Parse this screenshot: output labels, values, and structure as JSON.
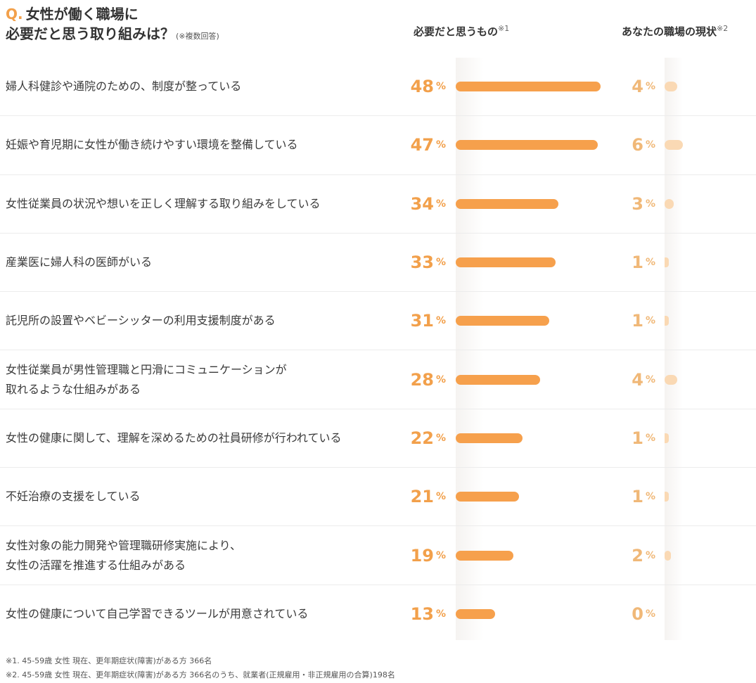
{
  "title": {
    "q_mark": "Q.",
    "line1": "女性が働く職場に",
    "line2": "必要だと思う取り組みは？",
    "note": "(※複数回答)"
  },
  "columns": {
    "needed": {
      "label": "必要だと思うもの",
      "note": "※1"
    },
    "current": {
      "label": "あなたの職場の現状",
      "note": "※2"
    }
  },
  "percent_symbol": "%",
  "colors": {
    "needed_bar": "#f6a04c",
    "current_bar": "#fad9b4",
    "needed_text": "#f2a04b",
    "current_text": "#f0b878"
  },
  "chart_data": {
    "type": "bar",
    "orientation": "horizontal",
    "categories": [
      [
        "婦人科健診や通院のための、制度が整っている"
      ],
      [
        "妊娠や育児期に女性が働き続けやすい環境を整備している"
      ],
      [
        "女性従業員の状況や想いを正しく理解する取り組みをしている"
      ],
      [
        "産業医に婦人科の医師がいる"
      ],
      [
        "託児所の設置やベビーシッターの利用支援制度がある"
      ],
      [
        "女性従業員が男性管理職と円滑にコミュニケーションが",
        "取れるような仕組みがある"
      ],
      [
        "女性の健康に関して、理解を深めるための社員研修が行われている"
      ],
      [
        "不妊治療の支援をしている"
      ],
      [
        "女性対象の能力開発や管理職研修実施により、",
        "女性の活躍を推進する仕組みがある"
      ],
      [
        "女性の健康について自己学習できるツールが用意されている"
      ]
    ],
    "series": [
      {
        "name": "必要だと思うもの",
        "values": [
          48,
          47,
          34,
          33,
          31,
          28,
          22,
          21,
          19,
          13
        ]
      },
      {
        "name": "あなたの職場の現状",
        "values": [
          4,
          6,
          3,
          1,
          1,
          4,
          1,
          1,
          2,
          0
        ]
      }
    ],
    "unit": "%",
    "xlim": [
      0,
      100
    ]
  },
  "footnotes": [
    "※1. 45-59歳 女性 現在、更年期症状(障害)がある方 366名",
    "※2. 45-59歳 女性 現在、更年期症状(障害)がある方 366名のうち、就業者(正規雇用・非正規雇用の合算)198名"
  ]
}
